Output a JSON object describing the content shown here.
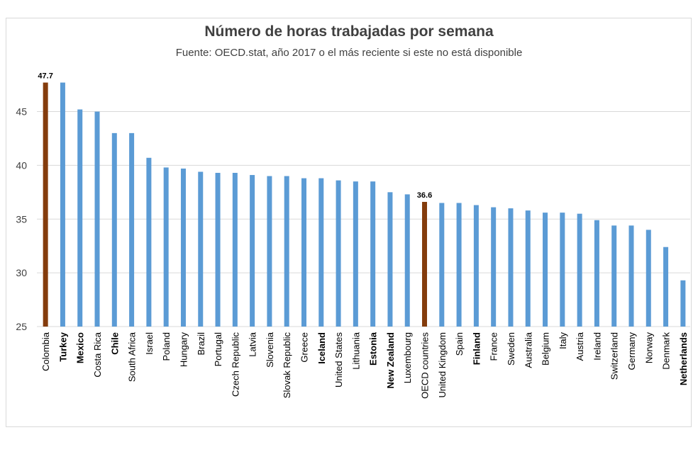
{
  "chart_data": {
    "type": "bar",
    "title": "Número de horas trabajadas por semana",
    "subtitle": "Fuente: OECD.stat, año 2017 o el más reciente si este no está disponible",
    "categories": [
      "Colombia",
      "Turkey",
      "Mexico",
      "Costa Rica",
      "Chile",
      "South Africa",
      "Israel",
      "Poland",
      "Hungary",
      "Brazil",
      "Portugal",
      "Czech Republic",
      "Latvia",
      "Slovenia",
      "Slovak Republic",
      "Greece",
      "Iceland",
      "United States",
      "Lithuania",
      "Estonia",
      "New Zealand",
      "Luxembourg",
      "OECD countries",
      "United Kingdom",
      "Spain",
      "Finland",
      "France",
      "Sweden",
      "Australia",
      "Belgium",
      "Italy",
      "Austria",
      "Ireland",
      "Switzerland",
      "Germany",
      "Norway",
      "Denmark",
      "Netherlands"
    ],
    "values": [
      47.7,
      47.7,
      45.2,
      45.0,
      43.0,
      43.0,
      40.7,
      39.8,
      39.7,
      39.4,
      39.3,
      39.3,
      39.1,
      39.0,
      39.0,
      38.8,
      38.8,
      38.6,
      38.5,
      38.5,
      37.5,
      37.3,
      36.6,
      36.5,
      36.5,
      36.3,
      36.1,
      36.0,
      35.8,
      35.6,
      35.6,
      35.5,
      34.9,
      34.4,
      34.4,
      34.0,
      32.4,
      29.3
    ],
    "highlighted": [
      "Colombia",
      "OECD countries"
    ],
    "data_labels": [
      {
        "category": "Colombia",
        "text": "47.7"
      },
      {
        "category": "OECD countries",
        "text": "36.6"
      }
    ],
    "bold_categories": [
      "Turkey",
      "Mexico",
      "Chile",
      "Iceland",
      "Estonia",
      "New Zealand",
      "Finland",
      "Netherlands"
    ],
    "ylim": [
      25,
      48
    ],
    "yticks": [
      25,
      30,
      35,
      40,
      45
    ],
    "grid": true,
    "legend": "none",
    "colors": {
      "default": "#5b9bd5",
      "highlight": "#843c0c",
      "grid": "#d9d9d9"
    }
  }
}
